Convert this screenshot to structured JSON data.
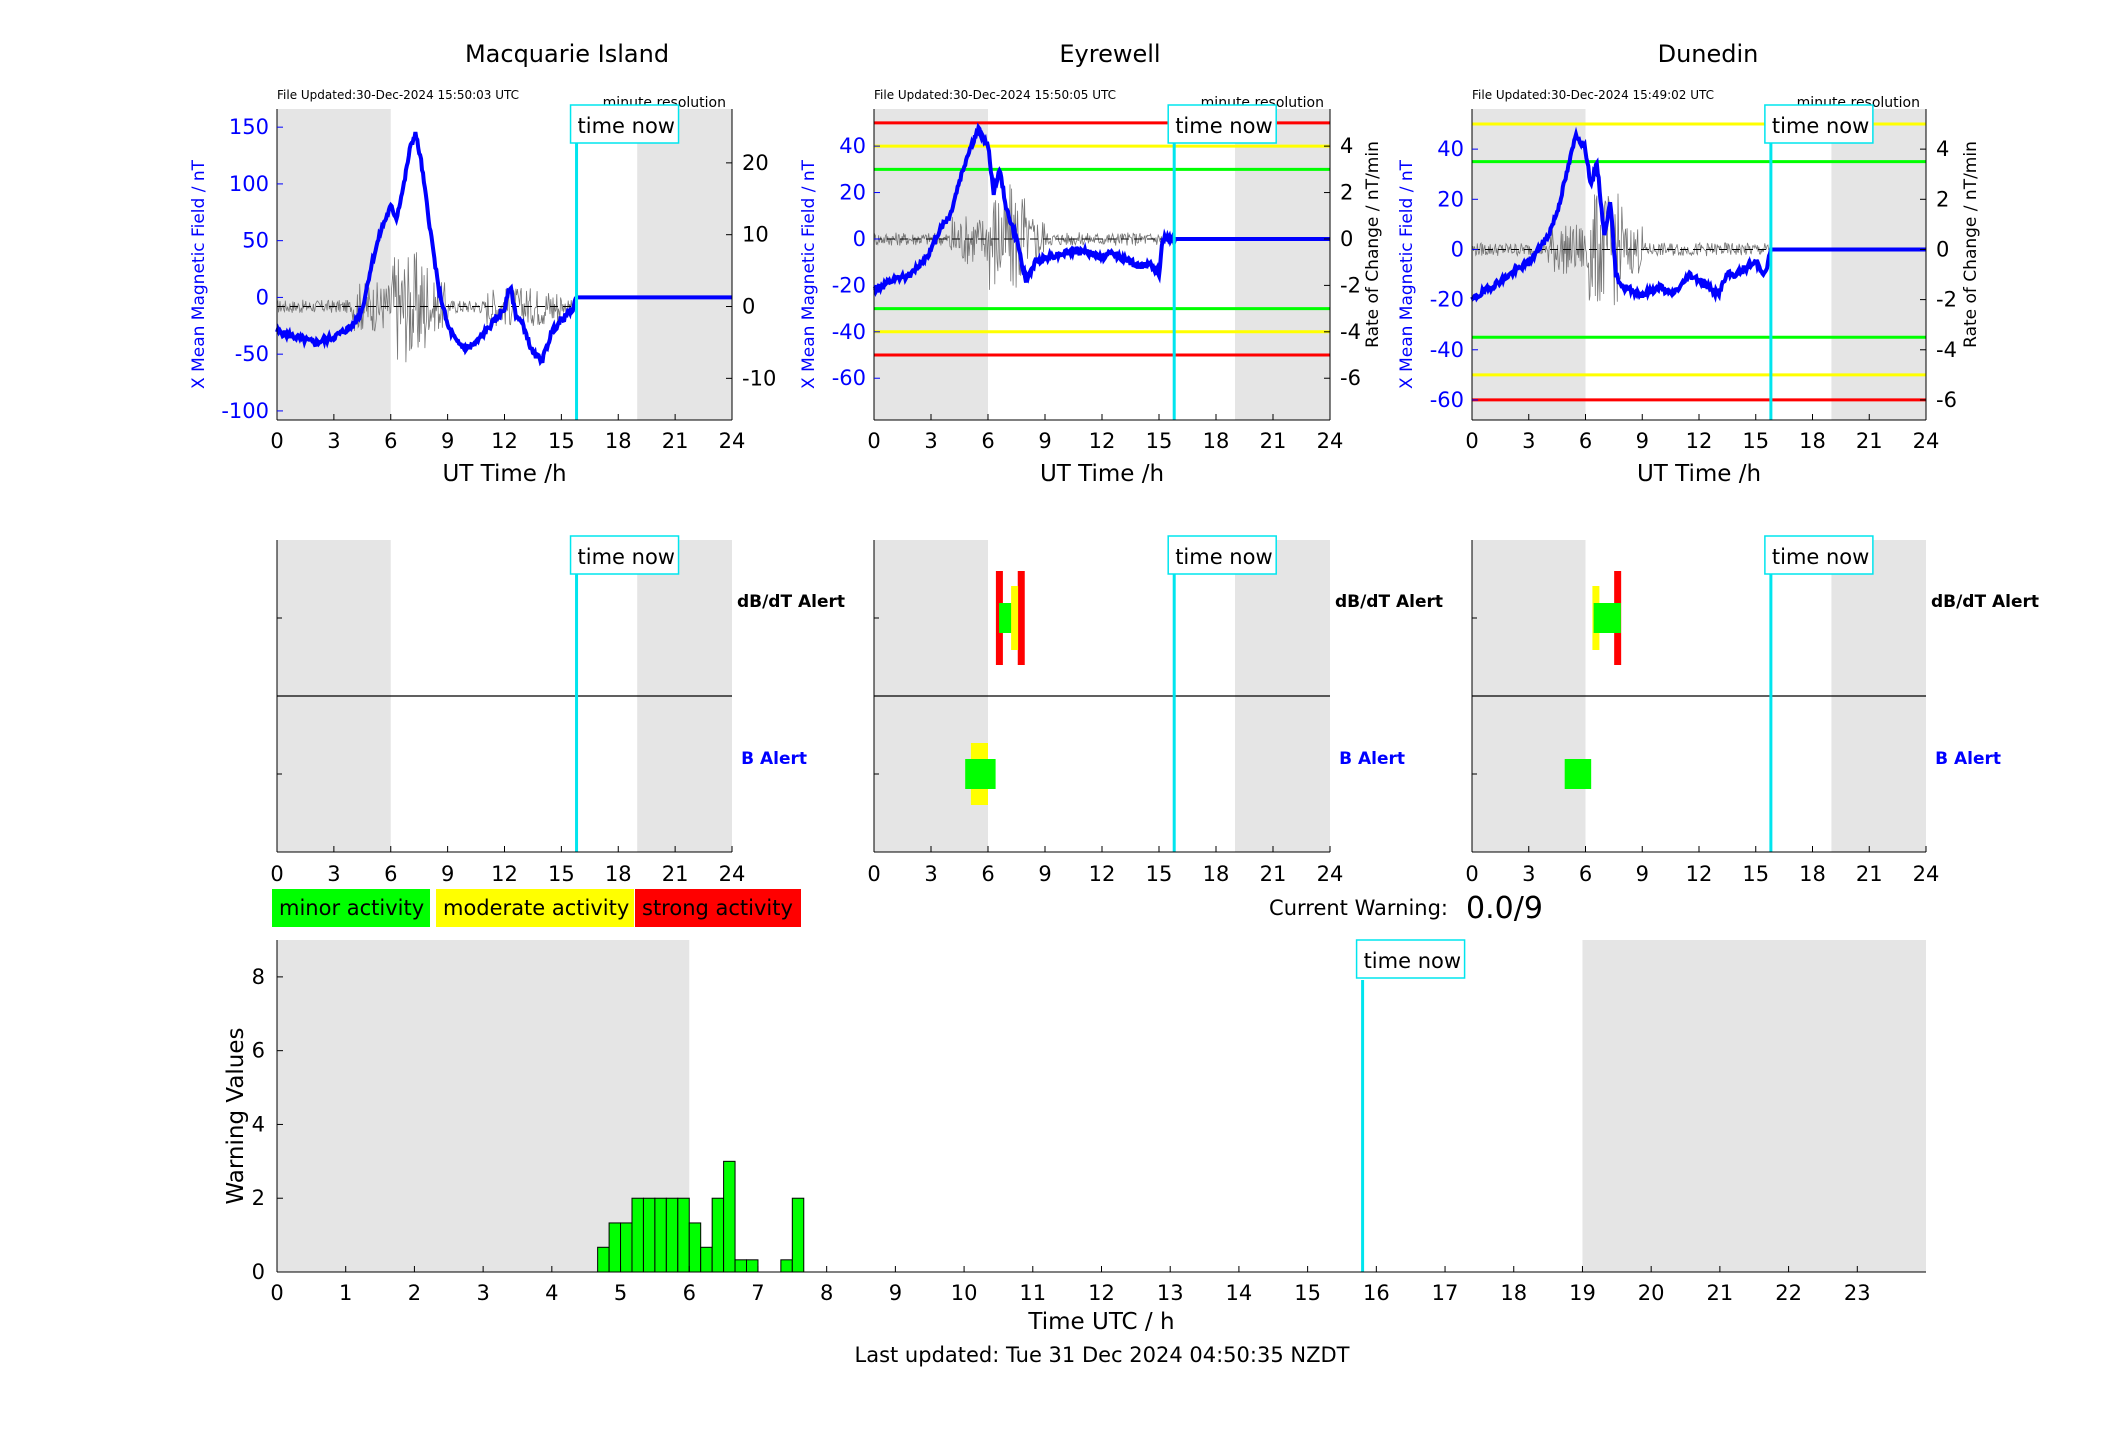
{
  "stations": [
    {
      "name": "Macquarie Island",
      "file_updated": "File Updated:30-Dec-2024 15:50:03 UTC",
      "resolution": "minute resolution",
      "left_ylabel": "X Mean Magnetic Field / nT",
      "right_ylabel": "Rate of Change / nT/min",
      "left_ylim": [
        -108,
        166
      ],
      "left_ticks": [
        -100,
        -50,
        0,
        50,
        100,
        150
      ],
      "right_ylim": [
        -15.8,
        27.5
      ],
      "right_ticks": [
        -10,
        0,
        10,
        20
      ],
      "show_left_label": true,
      "show_right_label": false,
      "thresholds": [],
      "alerts": {
        "dbdt": [],
        "b": []
      }
    },
    {
      "name": "Eyrewell",
      "file_updated": "File Updated:30-Dec-2024 15:50:05 UTC",
      "resolution": "minute resolution",
      "left_ylabel": "X Mean Magnetic Field / nT",
      "right_ylabel": "Rate of Change / nT/min",
      "left_ylim": [
        -78,
        56
      ],
      "left_ticks": [
        -60,
        -40,
        -20,
        0,
        20,
        40
      ],
      "right_ylim": [
        -7.8,
        5.6
      ],
      "right_ticks": [
        -6,
        -4,
        -2,
        0,
        2,
        4
      ],
      "show_left_label": true,
      "show_right_label": true,
      "thresholds": [
        {
          "value": 50,
          "color": "#ff0000"
        },
        {
          "value": 40,
          "color": "#ffff00"
        },
        {
          "value": 30,
          "color": "#00ff00"
        },
        {
          "value": -30,
          "color": "#00ff00"
        },
        {
          "value": -40,
          "color": "#ffff00"
        },
        {
          "value": -50,
          "color": "#ff0000"
        }
      ],
      "alerts": {
        "dbdt": [
          {
            "t": 6.6,
            "level": "strong"
          },
          {
            "t": 7.75,
            "level": "strong"
          },
          {
            "t": 6.95,
            "level": "minor"
          },
          {
            "t": 7.4,
            "level": "moderate"
          }
        ],
        "b": [
          {
            "t0": 5.1,
            "t1": 6.0,
            "level": "moderate"
          },
          {
            "t0": 4.8,
            "t1": 6.4,
            "level": "minor"
          }
        ]
      }
    },
    {
      "name": "Dunedin",
      "file_updated": "File Updated:30-Dec-2024 15:49:02 UTC",
      "resolution": "minute resolution",
      "left_ylabel": "X Mean Magnetic Field / nT",
      "right_ylabel": "Rate of Change / nT/min",
      "left_ylim": [
        -68,
        56
      ],
      "left_ticks": [
        -60,
        -40,
        -20,
        0,
        20,
        40
      ],
      "right_ylim": [
        -6.8,
        5.6
      ],
      "right_ticks": [
        -6,
        -4,
        -2,
        0,
        2,
        4
      ],
      "show_left_label": true,
      "show_right_label": true,
      "thresholds": [
        {
          "value": 50,
          "color": "#ffff00"
        },
        {
          "value": 35,
          "color": "#00ff00"
        },
        {
          "value": -35,
          "color": "#00ff00"
        },
        {
          "value": -50,
          "color": "#ffff00"
        },
        {
          "value": -60,
          "color": "#ff0000"
        }
      ],
      "alerts": {
        "dbdt": [
          {
            "t": 6.55,
            "level": "moderate"
          },
          {
            "t": 7.7,
            "level": "strong"
          },
          {
            "t": 6.8,
            "level": "minor"
          },
          {
            "t": 7.5,
            "level": "minor"
          }
        ],
        "b": [
          {
            "t0": 4.9,
            "t1": 6.3,
            "level": "minor"
          }
        ]
      }
    }
  ],
  "common": {
    "xlabel": "UT Time /h",
    "xticks": [
      0,
      3,
      6,
      9,
      12,
      15,
      18,
      21,
      24
    ],
    "xlim": [
      0,
      24
    ],
    "night_bands": [
      [
        0,
        6
      ],
      [
        19,
        24
      ]
    ],
    "time_now": 15.8,
    "time_now_label": "time now",
    "dbdt_label": "dB/dT Alert",
    "b_label": "B Alert"
  },
  "legend": [
    {
      "label": "minor activity",
      "color": "#00ff00"
    },
    {
      "label": "moderate activity",
      "color": "#ffff00"
    },
    {
      "label": "strong activity",
      "color": "#ff0000"
    }
  ],
  "colors": {
    "minor": "#00ff00",
    "moderate": "#ffff00",
    "strong": "#ff0000",
    "field": "#0000ff",
    "time_now": "#00e5ee",
    "night": "#e5e5e5"
  },
  "current_warning": {
    "label": "Current Warning:",
    "value": "0.0/9"
  },
  "chart_data": {
    "type": "bar",
    "title": "",
    "xlabel": "Time UTC / h",
    "ylabel": "Warning Values",
    "xlim": [
      0,
      24
    ],
    "ylim": [
      0,
      9
    ],
    "xticks": [
      0,
      1,
      2,
      3,
      4,
      5,
      6,
      7,
      8,
      9,
      10,
      11,
      12,
      13,
      14,
      15,
      16,
      17,
      18,
      19,
      20,
      21,
      22,
      23
    ],
    "yticks": [
      0,
      2,
      4,
      6,
      8
    ],
    "bar_width": 0.1667,
    "x": [
      4.75,
      4.9167,
      5.0833,
      5.25,
      5.4167,
      5.5833,
      5.75,
      5.9167,
      6.0833,
      6.25,
      6.4167,
      6.5833,
      6.75,
      6.9167,
      7.4167,
      7.5833
    ],
    "values": [
      0.67,
      1.33,
      1.33,
      2,
      2,
      2,
      2,
      2,
      1.33,
      0.67,
      2,
      3,
      0.33,
      0.33,
      0.33,
      2
    ],
    "time_now": 15.8,
    "night_bands": [
      [
        0,
        6
      ],
      [
        19,
        24
      ]
    ]
  },
  "footer": "Last updated: Tue 31 Dec 2024 04:50:35 NZDT"
}
